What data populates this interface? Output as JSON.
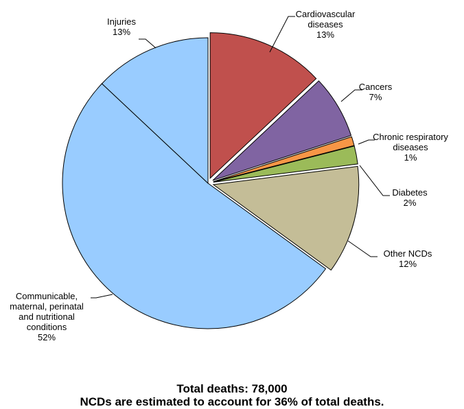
{
  "chart_data": {
    "type": "pie",
    "slices": [
      {
        "label": [
          "Cardiovascular",
          "diseases"
        ],
        "pct_label": "13%",
        "value": 13,
        "color": "#C0504D",
        "exploded": true
      },
      {
        "label": [
          "Cancers"
        ],
        "pct_label": "7%",
        "value": 7,
        "color": "#8064A2",
        "exploded": true
      },
      {
        "label": [
          "Chronic respiratory",
          "diseases"
        ],
        "pct_label": "1%",
        "value": 1,
        "color": "#F79646",
        "exploded": true
      },
      {
        "label": [
          "Diabetes"
        ],
        "pct_label": "2%",
        "value": 2,
        "color": "#9BBB59",
        "exploded": true
      },
      {
        "label": [
          "Other NCDs"
        ],
        "pct_label": "12%",
        "value": 12,
        "color": "#C4BD97",
        "exploded": true
      },
      {
        "label": [
          "Communicable,",
          "maternal, perinatal",
          "and nutritional",
          "conditions"
        ],
        "pct_label": "52%",
        "value": 52,
        "color": "#99CCFF",
        "exploded": false
      },
      {
        "label": [
          "Injuries"
        ],
        "pct_label": "13%",
        "value": 13,
        "color": "#99CCFF",
        "exploded": false
      }
    ],
    "footer_line1": "Total deaths: 78,000",
    "footer_line2": "NCDs are estimated to account for 36% of total deaths."
  }
}
